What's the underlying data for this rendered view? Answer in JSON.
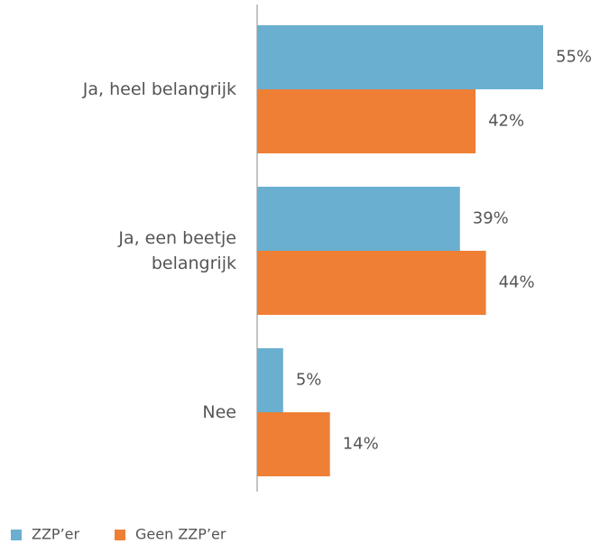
{
  "chart_data": {
    "type": "bar",
    "orientation": "horizontal",
    "categories": [
      "Ja, heel belangrijk",
      "Ja, een beetje belangrijk",
      "Nee"
    ],
    "series": [
      {
        "name": "ZZP’er",
        "color": "#6aafd0",
        "values": [
          55,
          39,
          5
        ],
        "value_labels": [
          "55%",
          "39%",
          "5%"
        ]
      },
      {
        "name": "Geen ZZP’er",
        "color": "#ee7f35",
        "values": [
          42,
          44,
          14
        ],
        "value_labels": [
          "42%",
          "44%",
          "14%"
        ]
      }
    ]
  }
}
